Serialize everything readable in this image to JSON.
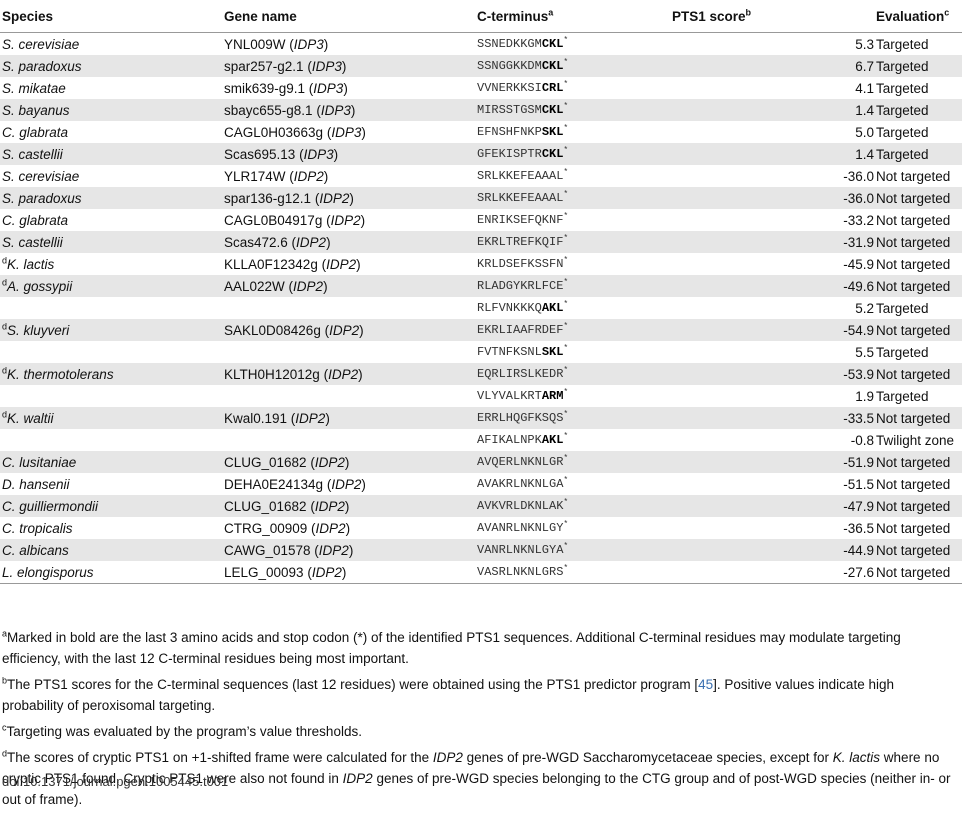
{
  "headers": {
    "species": "Species",
    "gene": "Gene name",
    "cterm": "C-terminus",
    "cterm_sup": "a",
    "score": "PTS1 score",
    "score_sup": "b",
    "eval": "Evaluation",
    "eval_sup": "c"
  },
  "rows": [
    {
      "dmark": "",
      "species": "S. cerevisiae",
      "gene": "YNL009W",
      "gene_paren": "IDP3",
      "seq": "SSNEDKKGM",
      "seq_bold": "CKL",
      "score": "5.3",
      "eval": "Targeted"
    },
    {
      "dmark": "",
      "species": "S. paradoxus",
      "gene": "spar257-g2.1",
      "gene_paren": "IDP3",
      "seq": "SSNGGKKDM",
      "seq_bold": "CKL",
      "score": "6.7",
      "eval": "Targeted"
    },
    {
      "dmark": "",
      "species": "S. mikatae",
      "gene": "smik639-g9.1",
      "gene_paren": "IDP3",
      "seq": "VVNERKKSI",
      "seq_bold": "CRL",
      "score": "4.1",
      "eval": "Targeted"
    },
    {
      "dmark": "",
      "species": "S. bayanus",
      "gene": "sbayc655-g8.1",
      "gene_paren": "IDP3",
      "seq": "MIRSSTGSM",
      "seq_bold": "CKL",
      "score": "1.4",
      "eval": "Targeted"
    },
    {
      "dmark": "",
      "species": "C. glabrata",
      "gene": "CAGL0H03663g",
      "gene_paren": "IDP3",
      "seq": "EFNSHFNKP",
      "seq_bold": "SKL",
      "score": "5.0",
      "eval": "Targeted"
    },
    {
      "dmark": "",
      "species": "S. castellii",
      "gene": "Scas695.13",
      "gene_paren": "IDP3",
      "seq": "GFEKISPTR",
      "seq_bold": "CKL",
      "score": "1.4",
      "eval": "Targeted"
    },
    {
      "dmark": "",
      "species": "S. cerevisiae",
      "gene": "YLR174W",
      "gene_paren": "IDP2",
      "seq": "SRLKKEFEAAAL",
      "seq_bold": "",
      "score": "-36.0",
      "eval": "Not targeted"
    },
    {
      "dmark": "",
      "species": "S. paradoxus",
      "gene": "spar136-g12.1",
      "gene_paren": "IDP2",
      "seq": "SRLKKEFEAAAL",
      "seq_bold": "",
      "score": "-36.0",
      "eval": "Not targeted"
    },
    {
      "dmark": "",
      "species": "C. glabrata",
      "gene": "CAGL0B04917g",
      "gene_paren": "IDP2",
      "seq": "ENRIKSEFQKNF",
      "seq_bold": "",
      "score": "-33.2",
      "eval": "Not targeted"
    },
    {
      "dmark": "",
      "species": "S. castellii",
      "gene": "Scas472.6",
      "gene_paren": "IDP2",
      "seq": "EKRLTREFKQIF",
      "seq_bold": "",
      "score": "-31.9",
      "eval": "Not targeted"
    },
    {
      "dmark": "d",
      "species": "K. lactis",
      "gene": "KLLA0F12342g",
      "gene_paren": "IDP2",
      "seq": "KRLDSEFKSSFN",
      "seq_bold": "",
      "score": "-45.9",
      "eval": "Not targeted"
    },
    {
      "dmark": "d",
      "species": "A. gossypii",
      "gene": "AAL022W",
      "gene_paren": "IDP2",
      "seq": "RLADGYKRLFCE",
      "seq_bold": "",
      "score": "-49.6",
      "eval": "Not targeted"
    },
    {
      "dmark": "",
      "species": "",
      "gene": "",
      "gene_paren": "",
      "seq": "RLFVNKKKQ",
      "seq_bold": "AKL",
      "score": "5.2",
      "eval": "Targeted"
    },
    {
      "dmark": "d",
      "species": "S. kluyveri",
      "gene": "SAKL0D08426g",
      "gene_paren": "IDP2",
      "seq": "EKRLIAAFRDEF",
      "seq_bold": "",
      "score": "-54.9",
      "eval": "Not targeted"
    },
    {
      "dmark": "",
      "species": "",
      "gene": "",
      "gene_paren": "",
      "seq": "FVTNFKSNL",
      "seq_bold": "SKL",
      "score": "5.5",
      "eval": "Targeted"
    },
    {
      "dmark": "d",
      "species": "K. thermotolerans",
      "gene": "KLTH0H12012g",
      "gene_paren": "IDP2",
      "seq": "EQRLIRSLKEDR",
      "seq_bold": "",
      "score": "-53.9",
      "eval": "Not targeted"
    },
    {
      "dmark": "",
      "species": "",
      "gene": "",
      "gene_paren": "",
      "seq": "VLYVALKRT",
      "seq_bold": "ARM",
      "score": "1.9",
      "eval": "Targeted"
    },
    {
      "dmark": "d",
      "species": "K. waltii",
      "gene": "Kwal0.191",
      "gene_paren": "IDP2",
      "seq": "ERRLHQGFKSQS",
      "seq_bold": "",
      "score": "-33.5",
      "eval": "Not targeted"
    },
    {
      "dmark": "",
      "species": "",
      "gene": "",
      "gene_paren": "",
      "seq": "AFIKALNPK",
      "seq_bold": "AKL",
      "score": "-0.8",
      "eval": "Twilight zone"
    },
    {
      "dmark": "",
      "species": "C. lusitaniae",
      "gene": "CLUG_01682",
      "gene_paren": "IDP2",
      "seq": "AVQERLNKNLGR",
      "seq_bold": "",
      "score": "-51.9",
      "eval": "Not targeted"
    },
    {
      "dmark": "",
      "species": "D. hansenii",
      "gene": "DEHA0E24134g",
      "gene_paren": "IDP2",
      "seq": "AVAKRLNKNLGA",
      "seq_bold": "",
      "score": "-51.5",
      "eval": "Not targeted"
    },
    {
      "dmark": "",
      "species": "C. guilliermondii",
      "gene": "CLUG_01682",
      "gene_paren": "IDP2",
      "seq": "AVKVRLDKNLAK",
      "seq_bold": "",
      "score": "-47.9",
      "eval": "Not targeted"
    },
    {
      "dmark": "",
      "species": "C. tropicalis",
      "gene": "CTRG_00909",
      "gene_paren": "IDP2",
      "seq": "AVANRLNKNLGY",
      "seq_bold": "",
      "score": "-36.5",
      "eval": "Not targeted"
    },
    {
      "dmark": "",
      "species": "C. albicans",
      "gene": "CAWG_01578",
      "gene_paren": "IDP2",
      "seq": "VANRLNKNLGYA",
      "seq_bold": "",
      "score": "-44.9",
      "eval": "Not targeted"
    },
    {
      "dmark": "",
      "species": "L. elongisporus",
      "gene": "LELG_00093",
      "gene_paren": "IDP2",
      "seq": "VASRLNKNLGRS",
      "seq_bold": "",
      "score": "-27.6",
      "eval": "Not targeted"
    }
  ],
  "footnotes": {
    "a": {
      "mark": "a",
      "text": "Marked in bold are the last 3 amino acids and stop codon (*) of the identified PTS1 sequences. Additional C-terminal residues may modulate targeting efficiency, with the last 12 C-terminal residues being most important."
    },
    "b": {
      "mark": "b",
      "text_before": "The PTS1 scores for the C-terminal sequences (last 12 residues) were obtained using the PTS1 predictor program [",
      "ref": "45",
      "text_after": "]. Positive values indicate high probability of peroxisomal targeting."
    },
    "c": {
      "mark": "c",
      "text": "Targeting was evaluated by the program’s value thresholds."
    },
    "d": {
      "mark": "d",
      "t1": "The scores of cryptic PTS1 on +1-shifted frame were calculated for the ",
      "i1": "IDP2",
      "t2": " genes of pre-WGD Saccharomycetaceae species, except for ",
      "i2": "K. lactis",
      "t3": " where no cryptic PTS1 found. Cryptic PTS1 were also not found in ",
      "i3": "IDP2",
      "t4": " genes of pre-WGD species belonging to the CTG group and of post-WGD species (neither in- or out of frame)."
    }
  },
  "stop_mark": "*",
  "doi": "doi:10.1371/journal.pgen.1005445.t001"
}
